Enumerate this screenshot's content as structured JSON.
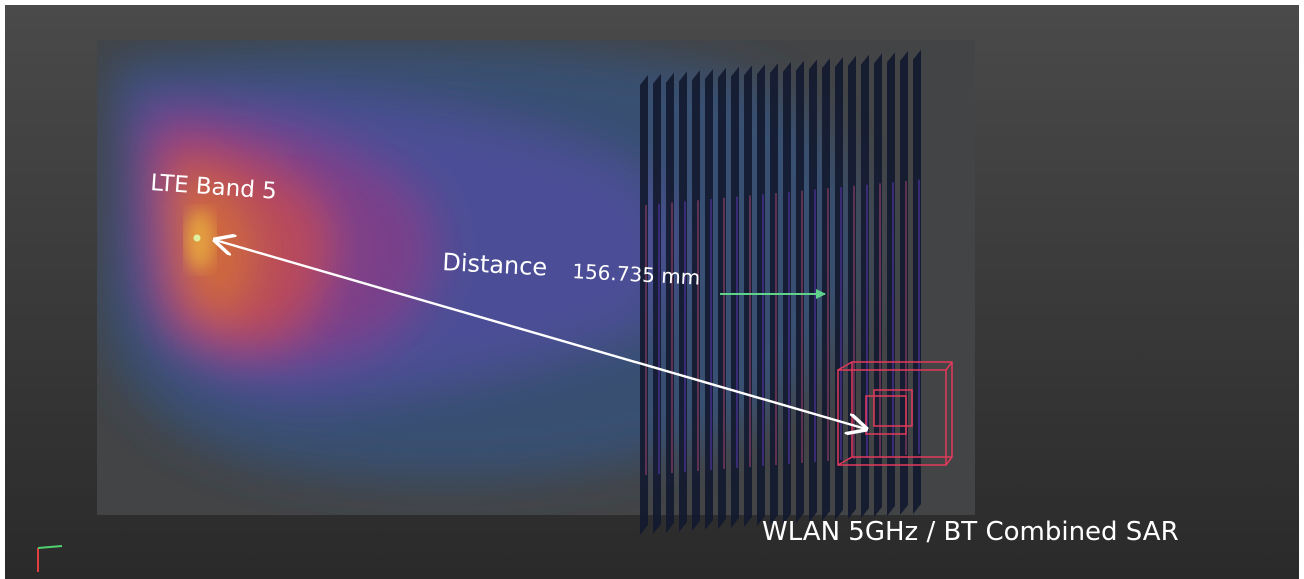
{
  "labels": {
    "source": "LTE Band 5",
    "distance_label": "Distance",
    "distance_value": "156.735 mm",
    "target": "WLAN 5GHz / BT Combined SAR"
  }
}
